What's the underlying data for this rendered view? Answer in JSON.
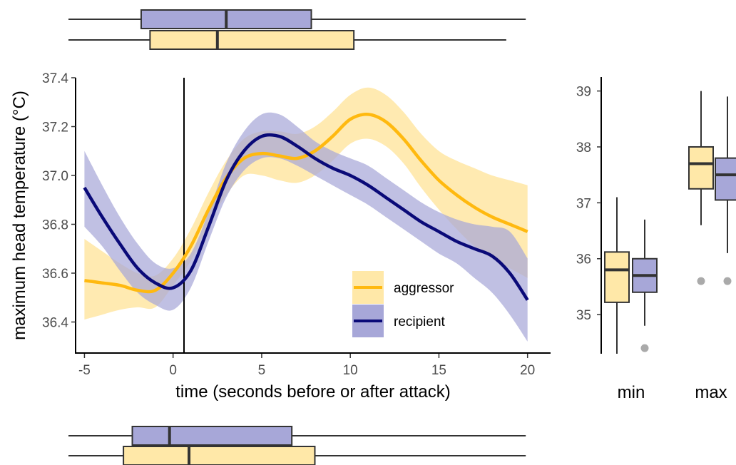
{
  "colors": {
    "aggressor_line": "#FFB90F",
    "aggressor_fill": "#FFE8A8",
    "recipient_line": "#0A0A78",
    "recipient_fill": "#A7A7D8",
    "box_outline": "#333333",
    "outlier": "#AAAAAA"
  },
  "chart_data": [
    {
      "type": "line",
      "xlabel": "time (seconds before or after attack)",
      "ylabel": "maximum head temperature (°C)",
      "xlim": [
        -5.5,
        21.3
      ],
      "ylim": [
        36.27,
        37.4
      ],
      "xticks": [
        -5,
        0,
        5,
        10,
        15,
        20
      ],
      "xtick_labels": [
        "-5",
        "0",
        "5",
        "10",
        "15",
        "20"
      ],
      "yticks": [
        36.4,
        36.6,
        36.8,
        37.0,
        37.2,
        37.4
      ],
      "ytick_labels": [
        "36.4",
        "36.6",
        "36.8",
        "37.0",
        "37.2",
        "37.4"
      ],
      "vline": 0,
      "legend": {
        "position": "bottom-right",
        "entries": [
          "aggressor",
          "recipient"
        ]
      },
      "series": [
        {
          "name": "aggressor",
          "x": [
            -5,
            -4,
            -3,
            -2,
            -1,
            0,
            1,
            2,
            3,
            4,
            5,
            6,
            7,
            8,
            9,
            10,
            11,
            12,
            13,
            14,
            15,
            16,
            17,
            18,
            19,
            20
          ],
          "y": [
            36.57,
            36.56,
            36.55,
            36.53,
            36.53,
            36.6,
            36.71,
            36.86,
            36.99,
            37.07,
            37.09,
            37.08,
            37.07,
            37.1,
            37.16,
            37.23,
            37.25,
            37.22,
            37.15,
            37.06,
            36.98,
            36.92,
            36.87,
            36.83,
            36.8,
            36.77
          ],
          "lower": [
            36.41,
            36.43,
            36.45,
            36.46,
            36.46,
            36.55,
            36.65,
            36.8,
            36.92,
            37.0,
            37.0,
            36.98,
            36.97,
            37.0,
            37.06,
            37.13,
            37.15,
            37.12,
            37.05,
            36.95,
            36.86,
            36.78,
            36.71,
            36.66,
            36.62,
            36.58
          ],
          "upper": [
            36.74,
            36.69,
            36.64,
            36.6,
            36.59,
            36.66,
            36.78,
            36.93,
            37.06,
            37.15,
            37.18,
            37.18,
            37.17,
            37.2,
            37.26,
            37.33,
            37.36,
            37.33,
            37.26,
            37.17,
            37.1,
            37.06,
            37.03,
            37.0,
            36.98,
            36.96
          ]
        },
        {
          "name": "recipient",
          "x": [
            -5,
            -4,
            -3,
            -2,
            -1,
            0,
            1,
            2,
            3,
            4,
            5,
            6,
            7,
            8,
            9,
            10,
            11,
            12,
            13,
            14,
            15,
            16,
            17,
            18,
            19,
            20
          ],
          "y": [
            36.95,
            36.83,
            36.72,
            36.62,
            36.56,
            36.54,
            36.61,
            36.79,
            36.98,
            37.1,
            37.16,
            37.16,
            37.12,
            37.07,
            37.03,
            37.0,
            36.96,
            36.91,
            36.86,
            36.81,
            36.77,
            36.73,
            36.7,
            36.67,
            36.6,
            36.49
          ],
          "lower": [
            36.79,
            36.71,
            36.61,
            36.52,
            36.47,
            36.45,
            36.54,
            36.73,
            36.91,
            37.02,
            37.07,
            37.07,
            37.04,
            37.0,
            36.96,
            36.92,
            36.88,
            36.83,
            36.78,
            36.73,
            36.68,
            36.64,
            36.58,
            36.52,
            36.43,
            36.32
          ],
          "upper": [
            37.1,
            36.96,
            36.83,
            36.72,
            36.64,
            36.62,
            36.68,
            36.85,
            37.05,
            37.18,
            37.25,
            37.25,
            37.2,
            37.14,
            37.1,
            37.07,
            37.04,
            36.99,
            36.94,
            36.89,
            36.85,
            36.82,
            36.8,
            36.79,
            36.77,
            36.66
          ]
        }
      ]
    },
    {
      "type": "box",
      "ylim": [
        34.3,
        39.25
      ],
      "yticks": [
        35,
        36,
        37,
        38,
        39
      ],
      "ytick_labels": [
        "35",
        "36",
        "37",
        "38",
        "39"
      ],
      "categories": [
        "min",
        "max"
      ],
      "series": [
        {
          "name": "aggressor",
          "boxes": [
            {
              "min": 34.3,
              "q1": 35.22,
              "median": 35.8,
              "q3": 36.12,
              "max": 37.1,
              "outliers": []
            },
            {
              "min": 36.6,
              "q1": 37.25,
              "median": 37.7,
              "q3": 38.0,
              "max": 39.0,
              "outliers": [
                35.6
              ]
            }
          ]
        },
        {
          "name": "recipient",
          "boxes": [
            {
              "min": 34.8,
              "q1": 35.4,
              "median": 35.7,
              "q3": 36.0,
              "max": 36.7,
              "outliers": [
                34.4
              ]
            },
            {
              "min": 36.1,
              "q1": 37.05,
              "median": 37.5,
              "q3": 37.8,
              "max": 38.9,
              "outliers": [
                35.6
              ]
            }
          ]
        }
      ]
    },
    {
      "type": "box",
      "orientation": "horizontal",
      "position": "top marginal",
      "x_axis": "time (seconds before or after attack)",
      "series": [
        {
          "name": "recipient",
          "min": -6.5,
          "q1": -1.8,
          "median": 3.0,
          "q3": 7.8,
          "max": 19.9
        },
        {
          "name": "aggressor",
          "min": -6.5,
          "q1": -1.3,
          "median": 2.5,
          "q3": 10.2,
          "max": 18.8
        }
      ]
    },
    {
      "type": "box",
      "orientation": "horizontal",
      "position": "bottom marginal",
      "x_axis": "time (seconds before or after attack)",
      "series": [
        {
          "name": "recipient",
          "min": -6.5,
          "q1": -2.3,
          "median": -0.2,
          "q3": 6.7,
          "max": 19.9
        },
        {
          "name": "aggressor",
          "min": -6.5,
          "q1": -2.8,
          "median": 0.9,
          "q3": 8.0,
          "max": 19.9
        }
      ]
    }
  ]
}
